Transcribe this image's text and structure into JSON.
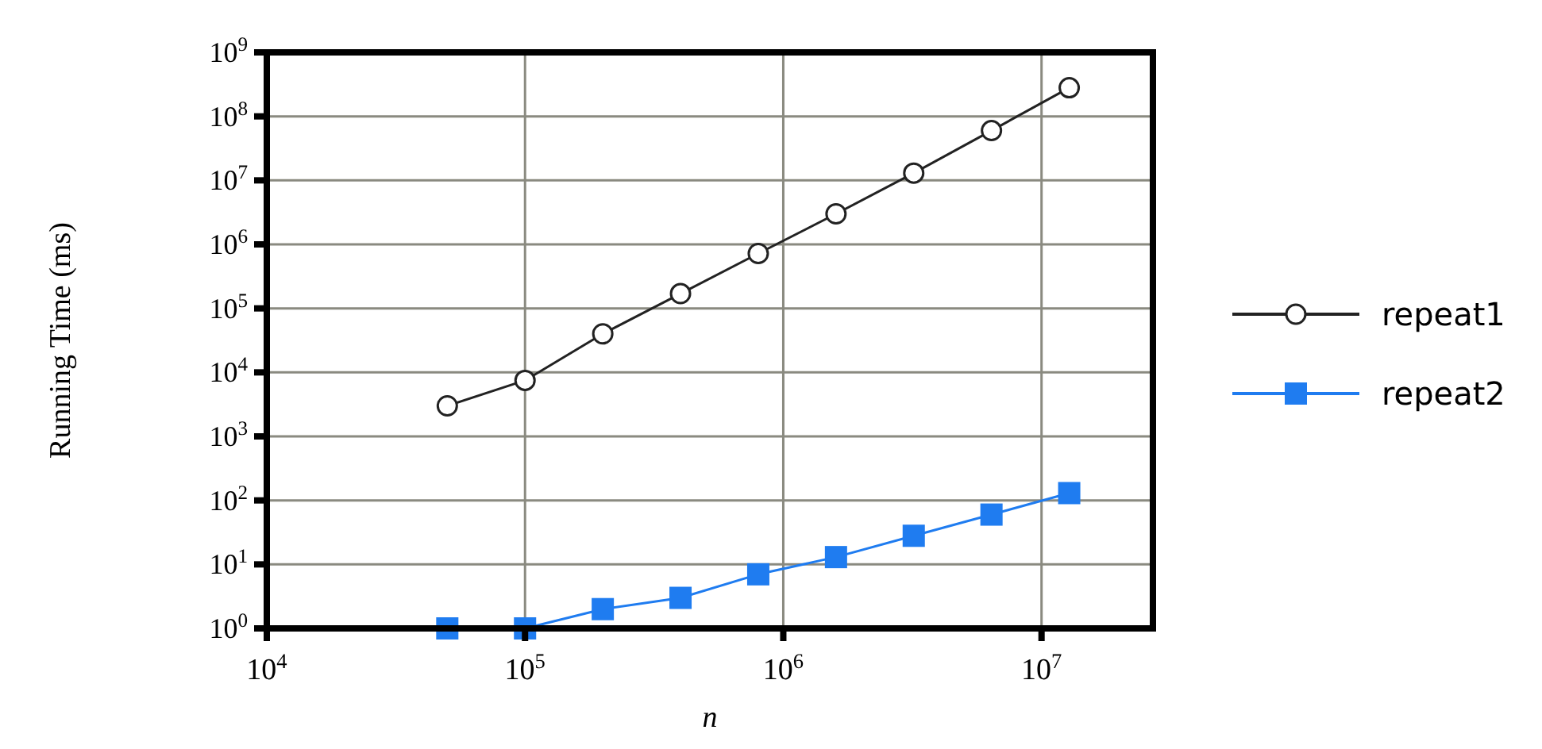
{
  "chart_data": {
    "type": "line",
    "xlabel": "n",
    "ylabel": "Running Time (ms)",
    "log": "xy",
    "grid": true,
    "legend": "right",
    "line_style": "solid",
    "xlim": [
      10000,
      27000000
    ],
    "ylim": [
      1,
      1000000000
    ],
    "xticks": [
      {
        "value": 10000,
        "label": "10$^{4}$"
      },
      {
        "value": 100000,
        "label": "10$^{5}$"
      },
      {
        "value": 1000000,
        "label": "10$^{6}$"
      },
      {
        "value": 10000000,
        "label": "10$^{7}$"
      }
    ],
    "yticks": [
      {
        "value": 1,
        "label": "10$^{0}$"
      },
      {
        "value": 10,
        "label": "10$^{1}$"
      },
      {
        "value": 100,
        "label": "10$^{2}$"
      },
      {
        "value": 1000,
        "label": "10$^{3}$"
      },
      {
        "value": 10000,
        "label": "10$^{4}$"
      },
      {
        "value": 100000,
        "label": "10$^{5}$"
      },
      {
        "value": 1000000,
        "label": "10$^{6}$"
      },
      {
        "value": 10000000,
        "label": "10$^{7}$"
      },
      {
        "value": 100000000,
        "label": "10$^{8}$"
      },
      {
        "value": 1000000000,
        "label": "10$^{9}$"
      }
    ],
    "x": [
      50000,
      100000,
      200000,
      400000,
      800000,
      1600000,
      3200000,
      6400000,
      12800000
    ],
    "series": [
      {
        "name": "repeat1",
        "color": "#222222",
        "marker": "circle",
        "values": [
          3000,
          7500,
          40000,
          170000,
          720000,
          3000000,
          13000000,
          60000000,
          280000000
        ]
      },
      {
        "name": "repeat2",
        "color": "#1f7cf0",
        "marker": "square",
        "values": [
          1,
          1,
          2,
          3,
          7,
          13,
          28,
          60,
          130
        ]
      }
    ]
  }
}
